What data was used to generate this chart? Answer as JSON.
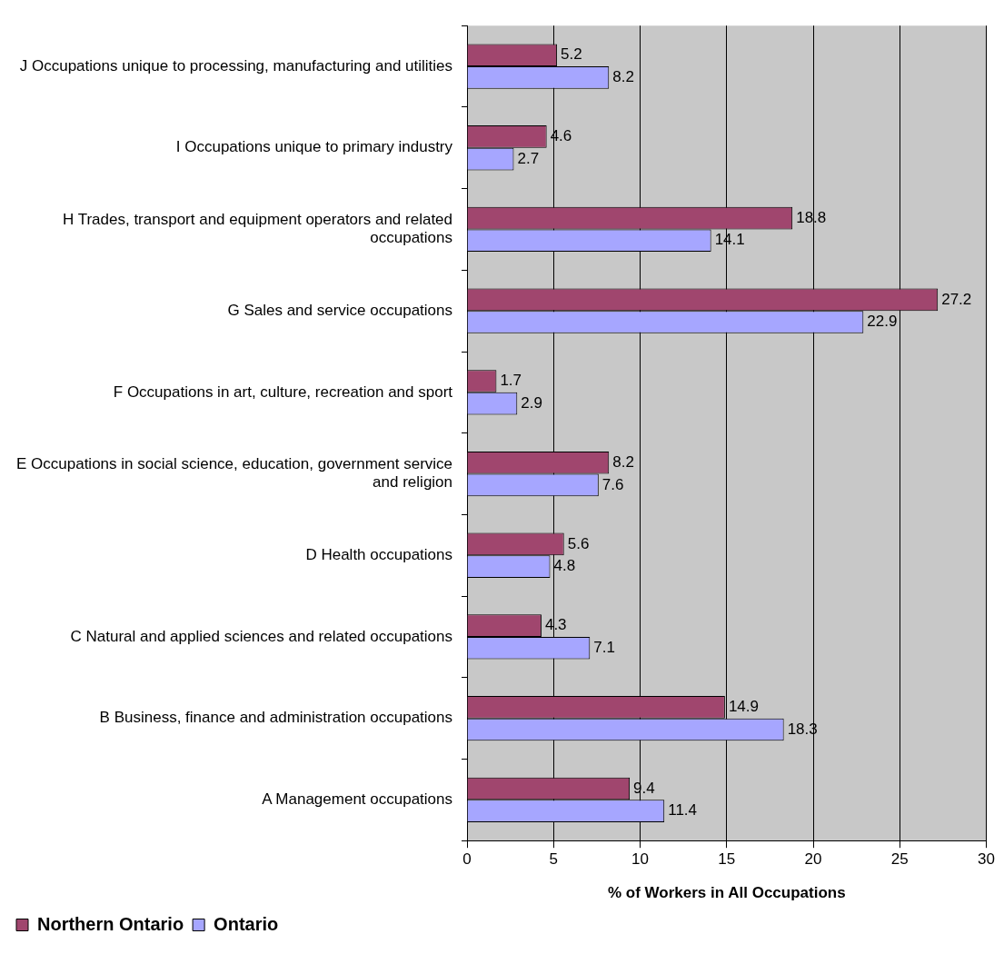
{
  "chart_data": {
    "type": "bar",
    "orientation": "horizontal",
    "xlabel": "% of Workers in All Occupations",
    "categories": [
      "J Occupations unique to processing, manufacturing and utilities",
      "I Occupations unique to primary industry",
      "H Trades, transport and equipment operators and related occupations",
      "G Sales and service occupations",
      "F Occupations in art, culture, recreation and sport",
      "E Occupations in social science, education, government service and religion",
      "D Health occupations",
      "C Natural and applied sciences and related occupations",
      "B Business, finance and administration occupations",
      "A Management occupations"
    ],
    "series": [
      {
        "name": "Northern Ontario",
        "color": "#a0466e",
        "values": [
          5.2,
          4.6,
          18.8,
          27.2,
          1.7,
          8.2,
          5.6,
          4.3,
          14.9,
          9.4
        ]
      },
      {
        "name": "Ontario",
        "color": "#a6a6ff",
        "values": [
          8.2,
          2.7,
          14.1,
          22.9,
          2.9,
          7.6,
          4.8,
          7.1,
          18.3,
          11.4
        ]
      }
    ],
    "xlim": [
      0,
      30
    ],
    "xticks": [
      0,
      5,
      10,
      15,
      20,
      25,
      30
    ],
    "grid": "x",
    "legend": "bottom left",
    "data_labels": true
  }
}
